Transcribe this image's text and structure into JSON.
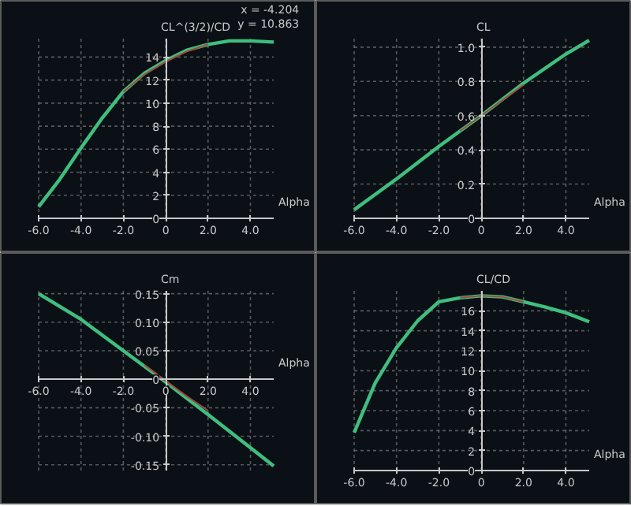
{
  "chart_data": [
    {
      "type": "line",
      "ylabel": "CL^(3/2)/CD",
      "xlabel": "Alpha",
      "xlim": [
        -6.0,
        5.1
      ],
      "ylim": [
        0,
        15.6
      ],
      "grid": true,
      "xticks": [
        {
          "value": -6,
          "label": "-6.0"
        },
        {
          "value": -4,
          "label": "-4.0"
        },
        {
          "value": -2,
          "label": "-2.0"
        },
        0,
        {
          "value": 2,
          "label": "2.0"
        },
        {
          "value": 4,
          "label": "4.0"
        }
      ],
      "yticks": [
        0,
        2,
        4,
        6,
        8,
        10,
        12,
        14
      ],
      "annotations": [
        "x =     -4.204",
        "y =     10.863"
      ],
      "series": [
        {
          "color": "#3fbf7f",
          "x": [
            -6,
            -5,
            -4,
            -3,
            -2,
            -1,
            0,
            1,
            2,
            3,
            4,
            5.1
          ],
          "values": [
            1.0,
            3.4,
            6.1,
            8.7,
            11.0,
            12.6,
            13.7,
            14.6,
            15.1,
            15.4,
            15.4,
            15.3
          ]
        },
        {
          "color": "#a04a3c",
          "x": [
            -2,
            -1,
            0,
            1,
            2
          ],
          "values": [
            11.0,
            12.5,
            13.6,
            14.5,
            15.1
          ]
        }
      ]
    },
    {
      "type": "line",
      "ylabel": "CL",
      "xlabel": "Alpha",
      "xlim": [
        -6.0,
        5.1
      ],
      "ylim": [
        0,
        1.05
      ],
      "grid": true,
      "xticks": [
        {
          "value": -6,
          "label": "-6.0"
        },
        {
          "value": -4,
          "label": "-4.0"
        },
        {
          "value": -2,
          "label": "-2.0"
        },
        0,
        {
          "value": 2,
          "label": "2.0"
        },
        {
          "value": 4,
          "label": "4.0"
        }
      ],
      "yticks": [
        0,
        0.2,
        0.4,
        0.6,
        0.8,
        {
          "value": 1.0,
          "label": "1.0"
        }
      ],
      "series": [
        {
          "color": "#3fbf7f",
          "x": [
            -6,
            -4,
            -2,
            0,
            2,
            4,
            5.1
          ],
          "values": [
            0.05,
            0.23,
            0.42,
            0.6,
            0.79,
            0.96,
            1.04
          ]
        },
        {
          "color": "#a04a3c",
          "x": [
            -1,
            0,
            1,
            2
          ],
          "values": [
            0.51,
            0.6,
            0.69,
            0.78
          ]
        }
      ]
    },
    {
      "type": "line",
      "ylabel": "Cm",
      "xlabel": "Alpha",
      "xlim": [
        -6.0,
        5.1
      ],
      "ylim": [
        -0.16,
        0.155
      ],
      "grid": true,
      "xticks": [
        {
          "value": -6,
          "label": "-6.0"
        },
        {
          "value": -4,
          "label": "-4.0"
        },
        {
          "value": -2,
          "label": "-2.0"
        },
        0,
        {
          "value": 2,
          "label": "2.0"
        },
        {
          "value": 4,
          "label": "4.0"
        }
      ],
      "yticks": [
        -0.15,
        {
          "value": -0.1,
          "label": "-0.10"
        },
        -0.05,
        0,
        0.05,
        {
          "value": 0.1,
          "label": "0.10"
        },
        0.15
      ],
      "series": [
        {
          "color": "#3fbf7f",
          "x": [
            -6,
            -4,
            -2,
            0,
            2,
            4,
            5.1
          ],
          "values": [
            0.15,
            0.105,
            0.05,
            -0.005,
            -0.062,
            -0.12,
            -0.152
          ]
        },
        {
          "color": "#a04a3c",
          "x": [
            -1,
            0,
            1,
            2
          ],
          "values": [
            0.025,
            -0.003,
            -0.03,
            -0.055
          ]
        }
      ]
    },
    {
      "type": "line",
      "ylabel": "CL/CD",
      "xlabel": "Alpha",
      "xlim": [
        -6.0,
        5.1
      ],
      "ylim": [
        0,
        18
      ],
      "grid": true,
      "xticks": [
        {
          "value": -6,
          "label": "-6.0"
        },
        {
          "value": -4,
          "label": "-4.0"
        },
        {
          "value": -2,
          "label": "-2.0"
        },
        0,
        {
          "value": 2,
          "label": "2.0"
        },
        {
          "value": 4,
          "label": "4.0"
        }
      ],
      "yticks": [
        0,
        2,
        4,
        6,
        8,
        10,
        12,
        14,
        16
      ],
      "series": [
        {
          "color": "#3fbf7f",
          "x": [
            -6,
            -5,
            -4,
            -3,
            -2,
            -1,
            0,
            1,
            2,
            3,
            4,
            5.1
          ],
          "values": [
            3.8,
            8.8,
            12.3,
            15.0,
            16.9,
            17.3,
            17.5,
            17.4,
            16.9,
            16.4,
            15.8,
            14.9
          ]
        },
        {
          "color": "#a04a3c",
          "x": [
            -1,
            0,
            1,
            2
          ],
          "values": [
            17.3,
            17.5,
            17.4,
            16.9
          ]
        }
      ]
    }
  ]
}
